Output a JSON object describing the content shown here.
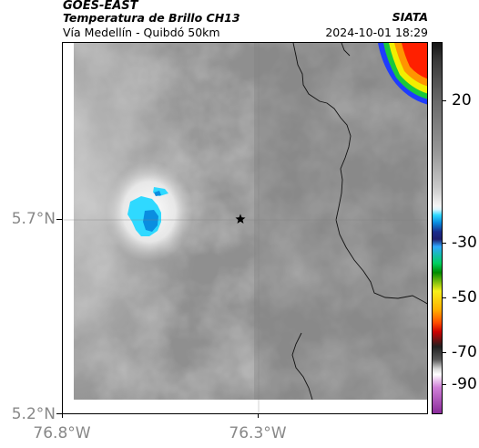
{
  "header": {
    "agency": "GOES-EAST",
    "product": "Temperatura de Brillo CH13",
    "route": "Vía Medellín - Quibdó 50km",
    "organization": "SIATA",
    "datetime": "2024-10-01 18:29"
  },
  "map": {
    "x_tick_labels": [
      "76.8°W",
      "76.3°W"
    ],
    "y_tick_labels": [
      "5.7°N",
      "5.2°N"
    ],
    "center_marker": "star-icon",
    "colors": {
      "cold_cloud_cyan": "#2fd9ff",
      "cold_cloud_blue": "#0a8de0",
      "warm_edge_red": "#ff2000",
      "warm_edge_orange": "#ff9500",
      "warm_edge_yellow": "#f2ee00",
      "warm_edge_green": "#18c83c",
      "warm_edge_blue": "#1e3cff"
    }
  },
  "colorbar": {
    "tick_labels": [
      "20",
      "-30",
      "-50",
      "-70",
      "-90"
    ],
    "values": [
      20,
      -30,
      -50,
      -70,
      -90
    ]
  }
}
